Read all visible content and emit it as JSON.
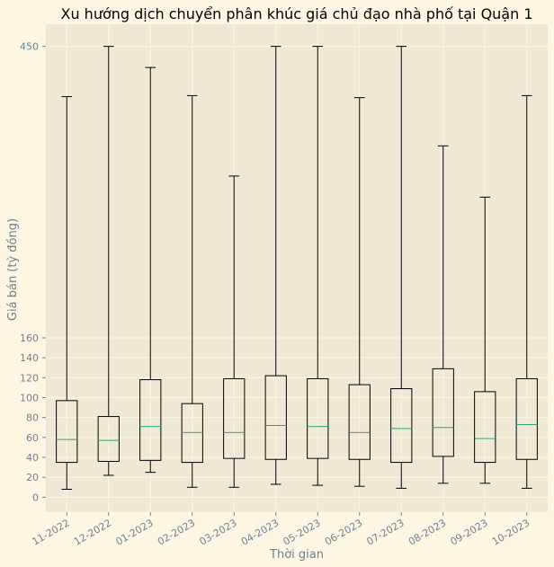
{
  "chart_data": {
    "type": "boxplot",
    "title": "Xu hướng dịch chuyển phân khúc giá chủ đạo nhà phố tại Quận 1",
    "xlabel": "Thời gian",
    "ylabel": "Giá bán (tỷ đồng)",
    "categories": [
      "11-2022",
      "12-2022",
      "01-2023",
      "02-2023",
      "03-2023",
      "04-2023",
      "05-2023",
      "06-2023",
      "07-2023",
      "08-2023",
      "09-2023",
      "10-2023"
    ],
    "boxes": [
      {
        "whislo": 8,
        "q1": 35,
        "med": 58,
        "q3": 97,
        "whishi": 400
      },
      {
        "whislo": 22,
        "q1": 36,
        "med": 57,
        "q3": 81,
        "whishi": 450
      },
      {
        "whislo": 25,
        "q1": 37,
        "med": 71,
        "q3": 118,
        "whishi": 429
      },
      {
        "whislo": 10,
        "q1": 35,
        "med": 65,
        "q3": 94,
        "whishi": 401
      },
      {
        "whislo": 10,
        "q1": 39,
        "med": 65,
        "q3": 119,
        "whishi": 321
      },
      {
        "whislo": 13,
        "q1": 38,
        "med": 72,
        "q3": 122,
        "whishi": 450
      },
      {
        "whislo": 12,
        "q1": 39,
        "med": 71,
        "q3": 119,
        "whishi": 450
      },
      {
        "whislo": 11,
        "q1": 38,
        "med": 65,
        "q3": 113,
        "whishi": 399
      },
      {
        "whislo": 9,
        "q1": 35,
        "med": 69,
        "q3": 109,
        "whishi": 450
      },
      {
        "whislo": 14,
        "q1": 41,
        "med": 70,
        "q3": 129,
        "whishi": 351
      },
      {
        "whislo": 14,
        "q1": 35,
        "med": 59,
        "q3": 106,
        "whishi": 300
      },
      {
        "whislo": 9,
        "q1": 38,
        "med": 73,
        "q3": 119,
        "whishi": 401
      }
    ],
    "yticks": [
      0,
      20,
      40,
      60,
      80,
      100,
      120,
      140,
      160,
      450
    ],
    "ylim": [
      -15,
      472
    ],
    "grid": true,
    "colors": {
      "figure_bg": "#fdf6e3",
      "plot_bg": "#eee8d5",
      "grid": "#fdf6e3",
      "box": "#000000",
      "median": "#2aa876",
      "tick_text": "#708090",
      "title_text": "#000000"
    }
  }
}
